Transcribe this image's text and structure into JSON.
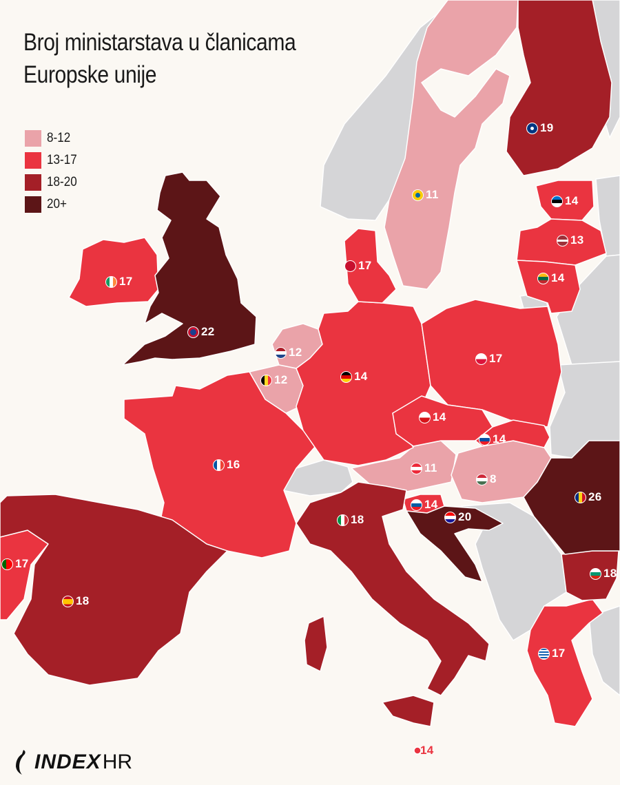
{
  "title_lines": [
    "Broj ministarstava u članicama",
    "Europske unije"
  ],
  "legend": [
    {
      "label": "8-12",
      "color": "#eaa3a9"
    },
    {
      "label": "13-17",
      "color": "#ea3440"
    },
    {
      "label": "18-20",
      "color": "#a41f27"
    },
    {
      "label": "20+",
      "color": "#5c1517"
    }
  ],
  "colors": {
    "non_eu": "#d5d5d7",
    "background": "#fbf8f3"
  },
  "countries": [
    {
      "id": "uk",
      "value": "22",
      "flag": "uk-flag-icon",
      "tier": 3
    },
    {
      "id": "ireland",
      "value": "17",
      "flag": "ireland-flag-icon",
      "tier": 1
    },
    {
      "id": "netherlands",
      "value": "12",
      "flag": "netherlands-flag-icon",
      "tier": 0
    },
    {
      "id": "belgium",
      "value": "12",
      "flag": "belgium-flag-icon",
      "tier": 0
    },
    {
      "id": "germany",
      "value": "14",
      "flag": "germany-flag-icon",
      "tier": 1
    },
    {
      "id": "denmark",
      "value": "17",
      "flag": "denmark-flag-icon",
      "tier": 1
    },
    {
      "id": "sweden",
      "value": "11",
      "flag": "sweden-flag-icon",
      "tier": 0
    },
    {
      "id": "finland",
      "value": "19",
      "flag": "finland-flag-icon",
      "tier": 2
    },
    {
      "id": "estonia",
      "value": "14",
      "flag": "estonia-flag-icon",
      "tier": 1
    },
    {
      "id": "latvia",
      "value": "13",
      "flag": "latvia-flag-icon",
      "tier": 1
    },
    {
      "id": "lithuania",
      "value": "14",
      "flag": "lithuania-flag-icon",
      "tier": 1
    },
    {
      "id": "poland",
      "value": "17",
      "flag": "poland-flag-icon",
      "tier": 1
    },
    {
      "id": "czechia",
      "value": "14",
      "flag": "czechia-flag-icon",
      "tier": 1
    },
    {
      "id": "slovakia",
      "value": "14",
      "flag": "slovakia-flag-icon",
      "tier": 1
    },
    {
      "id": "austria",
      "value": "11",
      "flag": "austria-flag-icon",
      "tier": 0
    },
    {
      "id": "hungary",
      "value": "8",
      "flag": "hungary-flag-icon",
      "tier": 0
    },
    {
      "id": "romania",
      "value": "26",
      "flag": "romania-flag-icon",
      "tier": 3
    },
    {
      "id": "slovenia",
      "value": "14",
      "flag": "slovenia-flag-icon",
      "tier": 1
    },
    {
      "id": "croatia",
      "value": "20",
      "flag": "croatia-flag-icon",
      "tier": 3
    },
    {
      "id": "italy",
      "value": "18",
      "flag": "italy-flag-icon",
      "tier": 2
    },
    {
      "id": "france",
      "value": "16",
      "flag": "france-flag-icon",
      "tier": 1
    },
    {
      "id": "spain",
      "value": "18",
      "flag": "spain-flag-icon",
      "tier": 2
    },
    {
      "id": "portugal",
      "value": "17",
      "flag": "portugal-flag-icon",
      "tier": 1
    },
    {
      "id": "bulgaria",
      "value": "18",
      "flag": "bulgaria-flag-icon",
      "tier": 2
    },
    {
      "id": "greece",
      "value": "17",
      "flag": "greece-flag-icon",
      "tier": 1
    },
    {
      "id": "malta",
      "value": "14",
      "flag": "malta-flag-icon",
      "tier": 1
    }
  ],
  "logo": {
    "index": "INDEX",
    "hr": "HR"
  }
}
